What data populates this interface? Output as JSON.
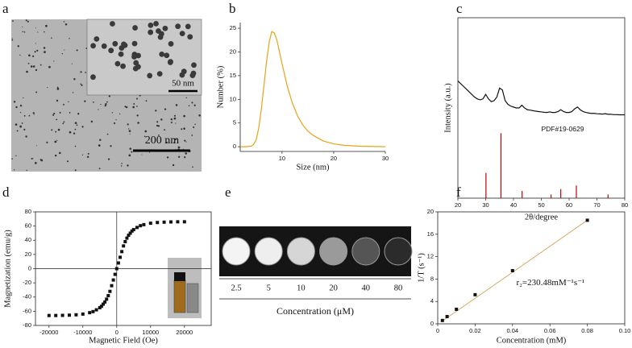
{
  "figure": {
    "a": {
      "label": "a",
      "inset_scale_bar": "50 nm",
      "scale_bar": "200 nm"
    },
    "e": {
      "label": "e",
      "concentrations": [
        "2.5",
        "5",
        "10",
        "20",
        "40",
        "80"
      ],
      "xlabel": "Concentration (μM)"
    }
  },
  "chart_data": [
    {
      "panel": "b",
      "type": "line",
      "xlabel": "Size (nm)",
      "ylabel": "Number (%)",
      "xlim": [
        1.9,
        30
      ],
      "ylim": [
        -1,
        26.2
      ],
      "xticks": [
        10,
        20,
        30
      ],
      "yticks": [
        0,
        5,
        10,
        15,
        20,
        25
      ],
      "series": [
        {
          "color": "#e8a317",
          "x": [
            2,
            3,
            4,
            4.5,
            5,
            5.5,
            6,
            6.5,
            7,
            7.5,
            8,
            8.5,
            9,
            9.5,
            10,
            11,
            12,
            13,
            14,
            15,
            16,
            18,
            20,
            22,
            25,
            30
          ],
          "values": [
            0,
            0,
            0.1,
            0.5,
            1.5,
            4,
            8,
            13,
            18,
            22,
            24.3,
            24,
            22.5,
            20,
            17.5,
            12.8,
            9.2,
            6.5,
            4.6,
            3.3,
            2.4,
            1.2,
            0.6,
            0.3,
            0.1,
            0
          ]
        }
      ]
    },
    {
      "panel": "c",
      "type": "line",
      "xlabel": "2θ/degree",
      "ylabel": "Intensity (a.u.)",
      "xlim": [
        20,
        80
      ],
      "ylim": [
        0,
        100
      ],
      "xticks": [
        20,
        30,
        40,
        50,
        60,
        70,
        80
      ],
      "series": [
        {
          "color": "#111111",
          "x": [
            20,
            21,
            22,
            23,
            24,
            25,
            26,
            27,
            28,
            29,
            30,
            31,
            32,
            33,
            34,
            35,
            36,
            37,
            38,
            39,
            40,
            41,
            42,
            43,
            44,
            45,
            46,
            47,
            48,
            49,
            50,
            51,
            52,
            53,
            54,
            55,
            56,
            57,
            58,
            59,
            60,
            61,
            62,
            63,
            64,
            65,
            66,
            67,
            68,
            69,
            70,
            71,
            72,
            73,
            74,
            75,
            76,
            77,
            78,
            79,
            80
          ],
          "values": [
            65,
            63.5,
            62,
            60.5,
            59,
            57.5,
            56,
            55,
            54.5,
            55,
            57.5,
            55,
            53.5,
            54,
            56,
            61,
            60,
            54,
            52,
            51,
            50.5,
            50,
            50,
            51.5,
            50,
            49,
            48.8,
            48.5,
            48.2,
            48,
            47.8,
            47.6,
            47.5,
            47.8,
            47.5,
            47.5,
            48,
            49,
            48,
            47.5,
            47.5,
            48,
            49.5,
            50.5,
            49,
            48,
            47.5,
            47.2,
            47,
            47,
            46.8,
            46.7,
            46.6,
            46.8,
            46.5,
            46.5,
            46.3,
            46.3,
            46.2,
            46.2,
            46.2
          ]
        },
        {
          "name": "PDF#19-0629",
          "color": "#c00000",
          "style": "stick",
          "x": [
            30.1,
            35.5,
            43.1,
            53.5,
            57.0,
            62.6,
            74.0
          ],
          "values": [
            14,
            36,
            4,
            2,
            5,
            7,
            2
          ]
        }
      ]
    },
    {
      "panel": "d",
      "type": "scatter",
      "xlabel": "Magnetic Field (Oe)",
      "ylabel": "Magnetization (emu/g)",
      "xlim": [
        -24000,
        27900
      ],
      "ylim": [
        -80,
        80
      ],
      "zero_lines": true,
      "xticks": [
        -20000,
        -10000,
        0,
        10000,
        20000
      ],
      "yticks": [
        -80,
        -60,
        -40,
        -20,
        0,
        20,
        40,
        60,
        80
      ],
      "series": [
        {
          "color": "#111111",
          "x": [
            -20000,
            -18000,
            -16000,
            -14000,
            -12000,
            -10000,
            -8000,
            -7000,
            -6000,
            -5000,
            -4500,
            -4000,
            -3500,
            -3000,
            -2500,
            -2000,
            -1500,
            -1000,
            -500,
            0,
            500,
            1000,
            1500,
            2000,
            2500,
            3000,
            3500,
            4000,
            4500,
            5000,
            6000,
            7000,
            8000,
            10000,
            12000,
            14000,
            16000,
            18000,
            20000
          ],
          "values": [
            -66,
            -66,
            -65.8,
            -65.5,
            -65,
            -64,
            -62,
            -60.5,
            -58,
            -55,
            -53,
            -50,
            -47,
            -43,
            -38,
            -32,
            -24,
            -16,
            -8,
            0,
            8,
            16,
            24,
            32,
            38,
            43,
            47,
            50,
            53,
            55,
            58,
            60.5,
            62,
            64,
            65,
            65.5,
            65.8,
            66,
            66
          ]
        }
      ]
    },
    {
      "panel": "f",
      "type": "scatter",
      "xlabel": "Concentration (mM)",
      "ylabel": "1/T (s⁻¹)",
      "annotation": "r₂=230.48mM⁻¹s⁻¹",
      "xlim": [
        0,
        0.1
      ],
      "ylim": [
        0,
        20
      ],
      "xticks": [
        0,
        0.02,
        0.04,
        0.06,
        0.08,
        {
          "value": 0.1,
          "label": "0.10"
        }
      ],
      "yticks": [
        0,
        4,
        8,
        12,
        16,
        20
      ],
      "series": [
        {
          "color": "#d4a25a",
          "style": "line",
          "x": [
            0.0025,
            0.08
          ],
          "values": [
            0.5,
            18.5
          ]
        },
        {
          "color": "#111111",
          "x": [
            0.0025,
            0.005,
            0.01,
            0.02,
            0.04,
            0.08
          ],
          "values": [
            0.6,
            1.3,
            2.6,
            5.2,
            9.5,
            18.5
          ]
        }
      ]
    }
  ]
}
